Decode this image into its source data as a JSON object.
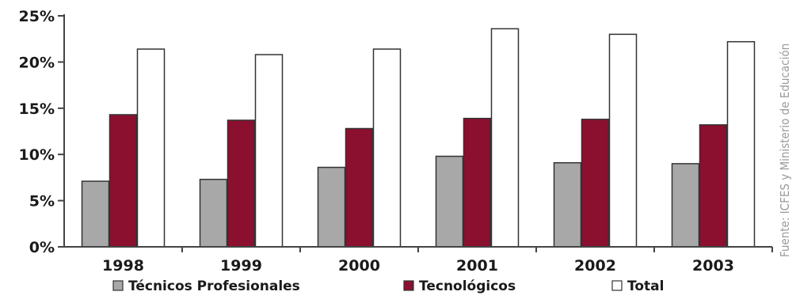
{
  "chart_data": {
    "type": "bar",
    "categories": [
      "1998",
      "1999",
      "2000",
      "2001",
      "2002",
      "2003"
    ],
    "series": [
      {
        "name": "Técnicos Profesionales",
        "values": [
          7.1,
          7.3,
          8.6,
          9.8,
          9.1,
          9.0
        ],
        "color": "#a8a8a8"
      },
      {
        "name": "Tecnológicos",
        "values": [
          14.3,
          13.7,
          12.8,
          13.9,
          13.8,
          13.2
        ],
        "color": "#8b0f2e"
      },
      {
        "name": "Total",
        "values": [
          21.4,
          20.8,
          21.4,
          23.6,
          23.0,
          22.2
        ],
        "color": "#ffffff"
      }
    ],
    "ylim": [
      0,
      25
    ],
    "yticks": [
      "0%",
      "5%",
      "10%",
      "15%",
      "20%",
      "25%"
    ],
    "xlabel": "",
    "ylabel": "",
    "title": "",
    "legend_position": "bottom",
    "grid": false
  },
  "source_note": "Fuente: ICFES y Ministerio de Educación"
}
